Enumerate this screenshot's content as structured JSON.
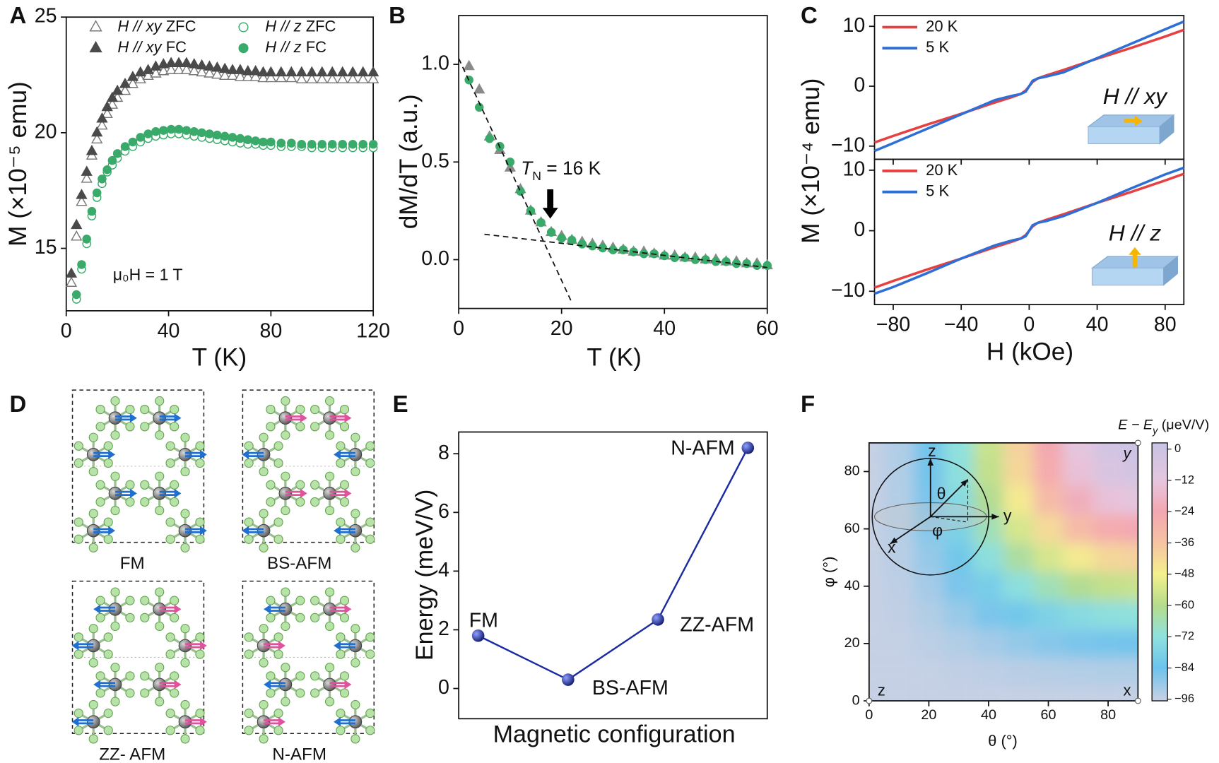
{
  "panel_labels": [
    "A",
    "B",
    "C",
    "D",
    "E",
    "F"
  ],
  "structures": {
    "labels": [
      "FM",
      "BS-AFM",
      "ZZ- AFM",
      "N-AFM"
    ]
  },
  "chart_data": [
    {
      "type": "scatter",
      "xlabel": "T (K)",
      "ylabel": "M (×10⁻⁵ emu)",
      "annotation": "μ₀H = 1 T",
      "xlim": [
        0,
        120
      ],
      "ylim": [
        12.3,
        25
      ],
      "xticks": [
        0,
        40,
        80,
        120
      ],
      "yticks": [
        15,
        20,
        25
      ],
      "x": [
        2,
        4,
        6,
        8,
        10,
        12,
        14,
        16,
        18,
        20,
        23,
        26,
        29,
        32,
        35,
        38,
        41,
        44,
        47,
        50,
        53,
        56,
        59,
        62,
        65,
        68,
        71,
        74,
        77,
        80,
        84,
        88,
        92,
        96,
        100,
        104,
        108,
        112,
        116,
        120
      ],
      "series": [
        {
          "name": "H // xy  ZFC",
          "color": "#777777",
          "marker": "triangle",
          "filled": false,
          "values": [
            13.5,
            15.5,
            17.0,
            18.0,
            19.0,
            19.7,
            20.3,
            20.8,
            21.2,
            21.5,
            21.8,
            22.1,
            22.3,
            22.45,
            22.55,
            22.65,
            22.7,
            22.7,
            22.7,
            22.65,
            22.6,
            22.55,
            22.5,
            22.45,
            22.45,
            22.4,
            22.4,
            22.4,
            22.35,
            22.35,
            22.35,
            22.35,
            22.3,
            22.3,
            22.3,
            22.3,
            22.3,
            22.3,
            22.3,
            22.3
          ]
        },
        {
          "name": "H // xy  FC",
          "color": "#4a4a4a",
          "marker": "triangle",
          "filled": true,
          "values": [
            13.9,
            16.0,
            17.3,
            18.3,
            19.2,
            20.0,
            20.6,
            21.1,
            21.5,
            21.8,
            22.1,
            22.4,
            22.6,
            22.7,
            22.85,
            22.95,
            23.0,
            23.0,
            23.0,
            22.95,
            22.9,
            22.85,
            22.8,
            22.75,
            22.7,
            22.7,
            22.65,
            22.65,
            22.6,
            22.6,
            22.6,
            22.6,
            22.6,
            22.6,
            22.6,
            22.6,
            22.6,
            22.6,
            22.6,
            22.6
          ]
        },
        {
          "name": "H // z  ZFC",
          "color": "#3aaa6a",
          "marker": "circle",
          "filled": false,
          "values": [
            null,
            12.8,
            14.1,
            15.2,
            16.4,
            17.2,
            17.8,
            18.3,
            18.6,
            18.9,
            19.2,
            19.4,
            19.6,
            19.75,
            19.85,
            19.9,
            19.95,
            19.95,
            19.9,
            19.85,
            19.8,
            19.75,
            19.7,
            19.65,
            19.6,
            19.55,
            19.5,
            19.5,
            19.45,
            19.45,
            19.4,
            19.4,
            19.4,
            19.35,
            19.35,
            19.35,
            19.35,
            19.35,
            19.35,
            19.35
          ]
        },
        {
          "name": "H // z  FC",
          "color": "#3aaa6a",
          "marker": "circle",
          "filled": true,
          "values": [
            null,
            13.0,
            14.3,
            15.4,
            16.6,
            17.4,
            18.0,
            18.4,
            18.8,
            19.1,
            19.4,
            19.6,
            19.8,
            19.95,
            20.05,
            20.1,
            20.15,
            20.15,
            20.1,
            20.05,
            20.0,
            19.95,
            19.9,
            19.85,
            19.8,
            19.75,
            19.7,
            19.65,
            19.6,
            19.6,
            19.55,
            19.55,
            19.5,
            19.5,
            19.5,
            19.5,
            19.5,
            19.5,
            19.5,
            19.5
          ]
        }
      ]
    },
    {
      "type": "scatter",
      "xlabel": "T (K)",
      "ylabel": "dM/dT (a.u.)",
      "annotation": [
        "T",
        "N",
        " = 16 K"
      ],
      "xlim": [
        0,
        60
      ],
      "ylim": [
        -0.25,
        1.25
      ],
      "xticks": [
        0,
        20,
        40,
        60
      ],
      "yticks": [
        {
          "value": 0,
          "label": "0.0"
        },
        {
          "value": 0.5,
          "label": "0.5"
        },
        {
          "value": 1,
          "label": "1.0"
        }
      ],
      "x": [
        2,
        4,
        6,
        8,
        10,
        12,
        14,
        16,
        18,
        20,
        22,
        24,
        26,
        28,
        30,
        32,
        34,
        36,
        38,
        40,
        42,
        44,
        46,
        48,
        50,
        52,
        54,
        56,
        58,
        60
      ],
      "series": [
        {
          "color": "#8a8a8a",
          "marker": "triangle",
          "filled": true,
          "values": [
            0.99,
            0.87,
            0.63,
            0.56,
            0.47,
            0.36,
            0.25,
            0.19,
            0.14,
            0.12,
            0.1,
            0.09,
            0.08,
            0.07,
            0.06,
            0.05,
            0.04,
            0.04,
            0.03,
            0.02,
            0.02,
            0.01,
            0.01,
            0,
            0,
            -0.01,
            -0.01,
            -0.02,
            -0.02,
            -0.03
          ]
        },
        {
          "color": "#3aaa6a",
          "marker": "circle",
          "filled": true,
          "values": [
            0.92,
            0.78,
            0.62,
            0.58,
            0.5,
            0.35,
            0.25,
            0.19,
            0.14,
            0.11,
            0.1,
            0.08,
            0.07,
            0.06,
            0.05,
            0.05,
            0.04,
            0.03,
            0.03,
            0.02,
            0.01,
            0.01,
            0,
            0,
            -0.01,
            -0.01,
            -0.02,
            -0.02,
            -0.03,
            -0.03
          ]
        }
      ],
      "fit_lines": [
        {
          "x": [
            0,
            22
          ],
          "y": [
            1.03,
            -0.22
          ]
        },
        {
          "x": [
            5,
            60
          ],
          "y": [
            0.13,
            -0.04
          ]
        }
      ],
      "arrow": {
        "x": 17.8,
        "y": [
          0.36,
          0.21
        ]
      }
    },
    {
      "type": "line",
      "ylabel": "M (×10⁻⁴ emu)",
      "annotation": "H // xy",
      "xlim": [
        -91,
        91
      ],
      "ylim": [
        -12.2,
        11.8
      ],
      "xticks": [
        {
          "value": -80,
          "label": "−80"
        },
        {
          "value": -40,
          "label": "−40"
        },
        0,
        40,
        80
      ],
      "yticks": [
        {
          "value": -10,
          "label": "−10"
        },
        0,
        10
      ],
      "x": [
        -91,
        -80,
        -60,
        -40,
        -20,
        -10,
        -5,
        -2,
        0,
        2,
        5,
        10,
        20,
        40,
        60,
        80,
        91
      ],
      "series": [
        {
          "name": "20 K",
          "color": "#e84040",
          "values": [
            -9.4,
            -8.3,
            -6.4,
            -4.6,
            -2.7,
            -1.8,
            -1.3,
            -0.7,
            0,
            0.7,
            1.3,
            1.8,
            2.7,
            4.6,
            6.4,
            8.3,
            9.4
          ]
        },
        {
          "name": "5 K",
          "color": "#2d6fd6",
          "values": [
            -10.8,
            -9.5,
            -7.1,
            -4.7,
            -2.3,
            -1.6,
            -1.3,
            -0.9,
            0,
            0.9,
            1.3,
            1.6,
            2.3,
            4.7,
            7.1,
            9.5,
            10.8
          ]
        }
      ]
    },
    {
      "type": "line",
      "xlabel": "H (kOe)",
      "annotation": "H // z",
      "xlim": [
        -91,
        91
      ],
      "ylim": [
        -12.2,
        11.8
      ],
      "xticks": [
        {
          "value": -80,
          "label": "−80"
        },
        {
          "value": -40,
          "label": "−40"
        },
        0,
        40,
        80
      ],
      "yticks": [
        {
          "value": -10,
          "label": "−10"
        },
        0,
        10
      ],
      "x": [
        -91,
        -80,
        -60,
        -40,
        -20,
        -10,
        -5,
        -2,
        0,
        2,
        5,
        10,
        20,
        40,
        60,
        80,
        91
      ],
      "series": [
        {
          "name": "20 K",
          "color": "#e84040",
          "values": [
            -9.4,
            -8.3,
            -6.4,
            -4.6,
            -2.7,
            -1.8,
            -1.3,
            -0.7,
            0,
            0.7,
            1.3,
            1.8,
            2.7,
            4.6,
            6.4,
            8.3,
            9.4
          ]
        },
        {
          "name": "5 K",
          "color": "#2d6fd6",
          "values": [
            -10.4,
            -9.3,
            -7.0,
            -4.6,
            -2.4,
            -1.6,
            -1.3,
            -0.9,
            0,
            0.9,
            1.3,
            1.6,
            2.4,
            4.6,
            7.0,
            9.3,
            10.4
          ]
        }
      ]
    },
    {
      "type": "line",
      "xlabel": "Magnetic configuration",
      "ylabel": "Energy (meV/V)",
      "categories": [
        "FM",
        "BS-AFM",
        "ZZ-AFM",
        "N-AFM"
      ],
      "values": [
        1.8,
        0.3,
        2.35,
        8.2
      ],
      "color": "#1a2aa0",
      "markers": true,
      "ylim": [
        -1.03,
        8.74
      ],
      "yticks": [
        0,
        2,
        4,
        6,
        8
      ]
    },
    {
      "type": "heatmap",
      "xlabel": "θ (°)",
      "ylabel": "φ (°)",
      "xlim": [
        0,
        90
      ],
      "ylim": [
        0,
        90
      ],
      "xticks": [
        0,
        20,
        40,
        60,
        80
      ],
      "yticks": [
        0,
        20,
        40,
        60,
        80
      ],
      "theta": [
        0,
        10,
        20,
        30,
        40,
        50,
        60,
        70,
        80,
        90
      ],
      "phi": [
        0,
        10,
        20,
        30,
        40,
        50,
        60,
        70,
        80,
        90
      ],
      "z": [
        [
          -96,
          -96,
          -96,
          -96,
          -96,
          -96,
          -96,
          -96,
          -96,
          -96
        ],
        [
          -96,
          -95.9,
          -95.7,
          -95.3,
          -94.8,
          -94.3,
          -93.8,
          -93.4,
          -93.2,
          -93.1
        ],
        [
          -96,
          -95.7,
          -94.7,
          -93.2,
          -91.4,
          -89.4,
          -87.6,
          -86.1,
          -85.1,
          -84.8
        ],
        [
          -96,
          -95.3,
          -93.2,
          -90,
          -86.1,
          -81.9,
          -78,
          -74.8,
          -72.7,
          -72
        ],
        [
          -96,
          -94.8,
          -91.4,
          -86.1,
          -79.6,
          -72.7,
          -66.3,
          -61,
          -57.5,
          -56.3
        ],
        [
          -96,
          -94.3,
          -89.4,
          -81.9,
          -72.7,
          -63,
          -53.8,
          -46.3,
          -41.4,
          -39.7
        ],
        [
          -96,
          -93.8,
          -87.6,
          -78,
          -66.3,
          -53.8,
          -42,
          -32.4,
          -26.2,
          -24
        ],
        [
          -96,
          -93.4,
          -86.1,
          -74.8,
          -61,
          -46.3,
          -32.4,
          -21.2,
          -13.8,
          -11.2
        ],
        [
          -96,
          -93.2,
          -85.1,
          -72.7,
          -57.5,
          -41.4,
          -26.2,
          -13.8,
          -5.7,
          -2.9
        ],
        [
          -96,
          -93.1,
          -84.8,
          -72,
          -56.3,
          -39.7,
          -24,
          -11.2,
          -2.9,
          0
        ]
      ],
      "colorbar_title": [
        "E − E",
        "y",
        " (μeV/V)"
      ],
      "clim": [
        -96.6,
        2.4
      ],
      "cticks": [
        0,
        {
          "value": -12,
          "label": "−12"
        },
        {
          "value": -24,
          "label": "−24"
        },
        {
          "value": -36,
          "label": "−36"
        },
        {
          "value": -48,
          "label": "−48"
        },
        {
          "value": -60,
          "label": "−60"
        },
        {
          "value": -72,
          "label": "−72"
        },
        {
          "value": -84,
          "label": "−84"
        },
        {
          "value": -96,
          "label": "−96"
        }
      ],
      "colors": [
        "#cbc3e3",
        "#e6c6df",
        "#f3a7b1",
        "#f6c3a3",
        "#f4f08e",
        "#b5dc8c",
        "#8fe1dd",
        "#6cc3ec",
        "#c6d0e4"
      ],
      "inset_labels": [
        "z",
        "y",
        "x",
        "θ",
        "φ"
      ],
      "corner_labels": [
        "y",
        "x",
        "z"
      ]
    }
  ]
}
